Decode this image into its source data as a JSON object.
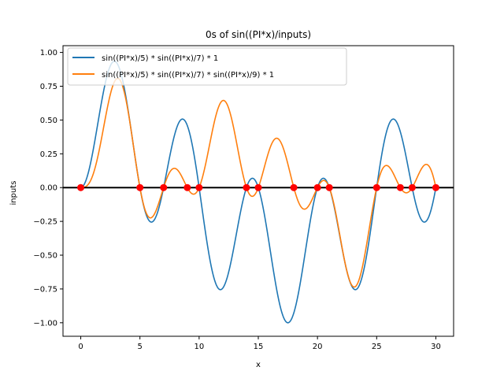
{
  "chart_data": {
    "type": "line",
    "title": "0s of sin((PI*x)/inputs)",
    "xlabel": "x",
    "ylabel": "inputs",
    "xlim": [
      -1.5,
      31.5
    ],
    "ylim": [
      -1.1,
      1.05
    ],
    "x_ticks": [
      0,
      5,
      10,
      15,
      20,
      25,
      30
    ],
    "x_tick_labels": [
      "0",
      "5",
      "10",
      "15",
      "20",
      "25",
      "30"
    ],
    "y_ticks": [
      1.0,
      0.75,
      0.5,
      0.25,
      0.0,
      -0.25,
      -0.5,
      -0.75,
      -1.0
    ],
    "y_tick_labels": [
      "1.00",
      "0.75",
      "0.50",
      "0.25",
      "0.00",
      "−0.25",
      "−0.50",
      "−0.75",
      "−1.00"
    ],
    "x_range": [
      0,
      30
    ],
    "series": [
      {
        "name": "sin((PI*x)/5) * sin((PI*x)/7) * 1",
        "color": "#1f77b4",
        "divisors": [
          5,
          7
        ],
        "expression": "sin(pi*x/5) * sin(pi*x/7)"
      },
      {
        "name": "sin((PI*x)/5) * sin((PI*x)/7) * sin((PI*x)/9) * 1",
        "color": "#ff7f0e",
        "divisors": [
          5,
          7,
          9
        ],
        "expression": "sin(pi*x/5) * sin(pi*x/7) * sin(pi*x/9)"
      }
    ],
    "zero_points": [
      0,
      5,
      7,
      9,
      10,
      14,
      15,
      18,
      20,
      21,
      25,
      27,
      28,
      30
    ],
    "zero_point_color": "#ff0000",
    "baseline_y": 0,
    "baseline_color": "#000000",
    "grid": false,
    "legend_position": "top-left"
  }
}
